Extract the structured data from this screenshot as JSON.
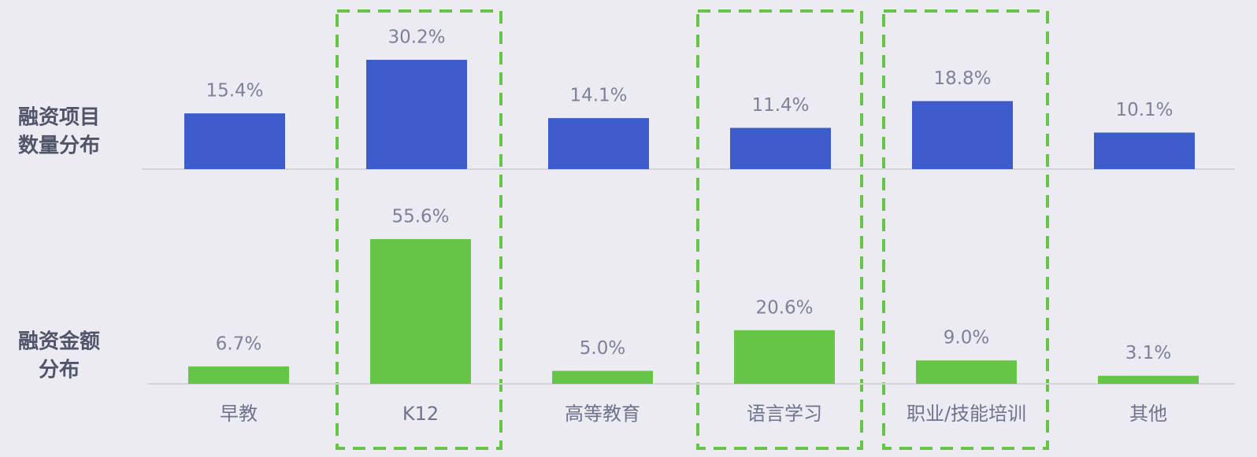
{
  "chart_data": [
    {
      "type": "bar",
      "title": [
        "融资项目",
        "数量分布"
      ],
      "color": "#3d5bcb",
      "values": [
        15.4,
        30.2,
        14.1,
        11.4,
        18.8,
        10.1
      ],
      "value_labels": [
        "15.4%",
        "30.2%",
        "14.1%",
        "11.4%",
        "18.8%",
        "10.1%"
      ]
    },
    {
      "type": "bar",
      "title": [
        "融资金额",
        "分布"
      ],
      "color": "#66c447",
      "categories": [
        "早教",
        "K12",
        "高等教育",
        "语言学习",
        "职业/技能培训",
        "其他"
      ],
      "values": [
        6.7,
        55.6,
        5.0,
        20.6,
        9.0,
        3.1
      ],
      "value_labels": [
        "6.7%",
        "55.6%",
        "5.0%",
        "20.6%",
        "9.0%",
        "3.1%"
      ]
    }
  ]
}
